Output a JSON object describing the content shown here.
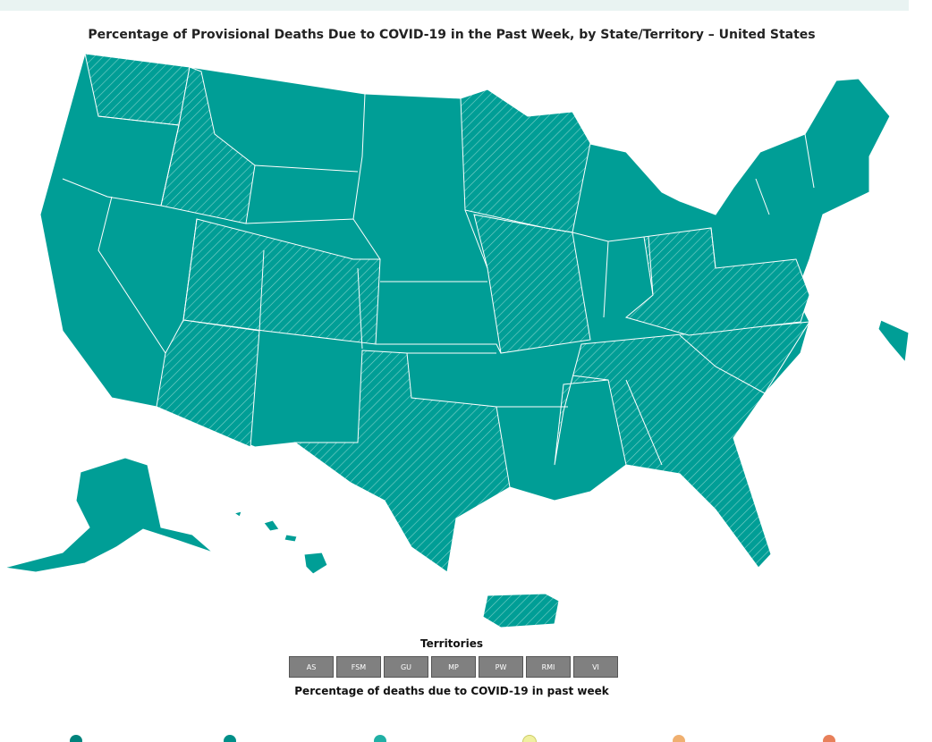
{
  "header": {
    "title": "Percentage of Provisional Deaths Due to COVID-19 in the Past Week, by State/Territory – United States"
  },
  "territories": {
    "heading": "Territories",
    "buttons": [
      "AS",
      "FSM",
      "GU",
      "MP",
      "PW",
      "RMI",
      "VI"
    ]
  },
  "legend": {
    "title": "Percentage of deaths due to COVID-19 in past week"
  }
}
